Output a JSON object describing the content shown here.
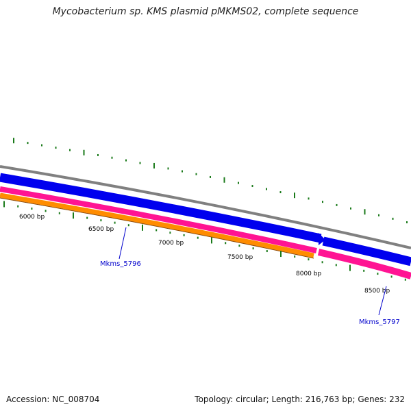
{
  "title": "Mycobacterium sp. KMS plasmid pMKMS02, complete sequence",
  "footer": {
    "accession": "Accession: NC_008704",
    "stats": "Topology: circular; Length: 216,763 bp; Genes: 232"
  },
  "ruler_labels": [
    "6000 bp",
    "6500 bp",
    "7000 bp",
    "7500 bp",
    "8000 bp",
    "8500 bp"
  ],
  "gene_labels": [
    "Mkms_5796",
    "Mkms_5797"
  ],
  "colors": {
    "backbone": "#808080",
    "cds_track": "#0000ee",
    "gene_track": "#ff1493",
    "orange_track": "#ff8c00",
    "tick": "#1a7a1a",
    "label": "#0000cc"
  }
}
